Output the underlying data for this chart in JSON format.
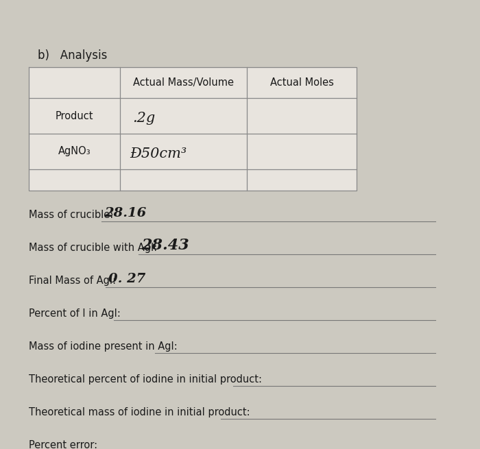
{
  "background_color": "#ccc9c0",
  "paper_color": "#d4d0c8",
  "title": "b)   Analysis",
  "table_headers": [
    "",
    "Actual Mass/Volume",
    "Actual Moles"
  ],
  "table_row1": [
    "Product",
    ".2g",
    ""
  ],
  "table_row2": [
    "AgNO₃",
    "Ð50cm³",
    ""
  ],
  "fields": [
    {
      "label": "Mass of crucible:",
      "value": "28.16",
      "value_size": 14
    },
    {
      "label": "Mass of crucible with AgI:",
      "value": "28.43",
      "value_size": 16
    },
    {
      "label": "Final Mass of AgI:",
      "value": "0. 27",
      "value_size": 14
    },
    {
      "label": "Percent of I in AgI:",
      "value": "",
      "value_size": 12
    },
    {
      "label": "Mass of iodine present in AgI:",
      "value": "",
      "value_size": 12
    },
    {
      "label": "Theoretical percent of iodine in initial product:",
      "value": "",
      "value_size": 12
    },
    {
      "label": "Theoretical mass of iodine in initial product:",
      "value": "",
      "value_size": 12
    },
    {
      "label": "Percent error:",
      "value": "",
      "value_size": 12
    }
  ],
  "label_fontsize": 10.5,
  "header_fontsize": 10.5,
  "title_fontsize": 12
}
